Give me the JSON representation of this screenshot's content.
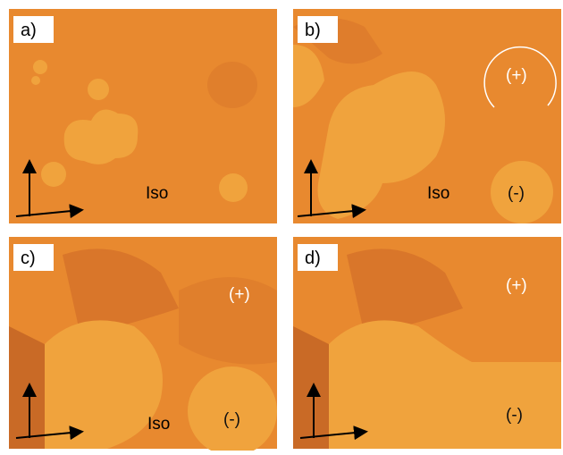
{
  "panels": [
    {
      "label": "a)",
      "annotations": [
        "Iso"
      ]
    },
    {
      "label": "b)",
      "annotations": [
        "(+)",
        "Iso",
        "(-)"
      ]
    },
    {
      "label": "c)",
      "annotations": [
        "(+)",
        "Iso",
        "(-)"
      ]
    },
    {
      "label": "d)",
      "annotations": [
        "(+)",
        "(-)"
      ]
    }
  ]
}
